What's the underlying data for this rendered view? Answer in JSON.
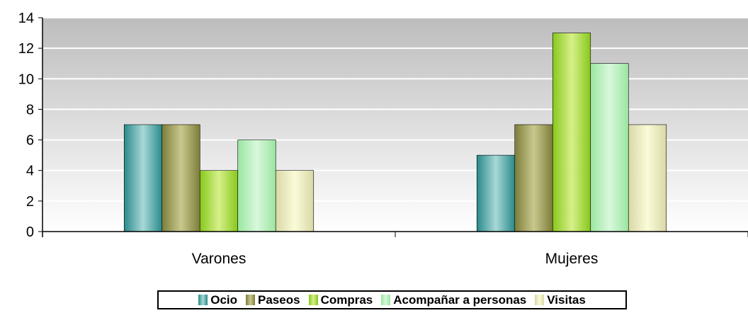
{
  "chart_data": {
    "type": "bar",
    "categories": [
      "Varones",
      "Mujeres"
    ],
    "series": [
      {
        "name": "Ocio",
        "values": [
          7,
          5
        ],
        "color": "#2a8a8a",
        "light": "#a8d8d8"
      },
      {
        "name": "Paseos",
        "values": [
          7,
          7
        ],
        "color": "#7d7d3a",
        "light": "#c9c98e"
      },
      {
        "name": "Compras",
        "values": [
          4,
          13
        ],
        "color": "#88c81c",
        "light": "#d6f08a"
      },
      {
        "name": "Acompañar a personas",
        "values": [
          6,
          11
        ],
        "color": "#9ae6a0",
        "light": "#d8f8dc"
      },
      {
        "name": "Visitas",
        "values": [
          4,
          7
        ],
        "color": "#d8d8a8",
        "light": "#fbfbd8"
      }
    ],
    "ylim": [
      0,
      14
    ],
    "yticks": [
      "0",
      "2",
      "4",
      "6",
      "8",
      "10",
      "12",
      "14"
    ],
    "grid": true,
    "legend": "bottom"
  }
}
